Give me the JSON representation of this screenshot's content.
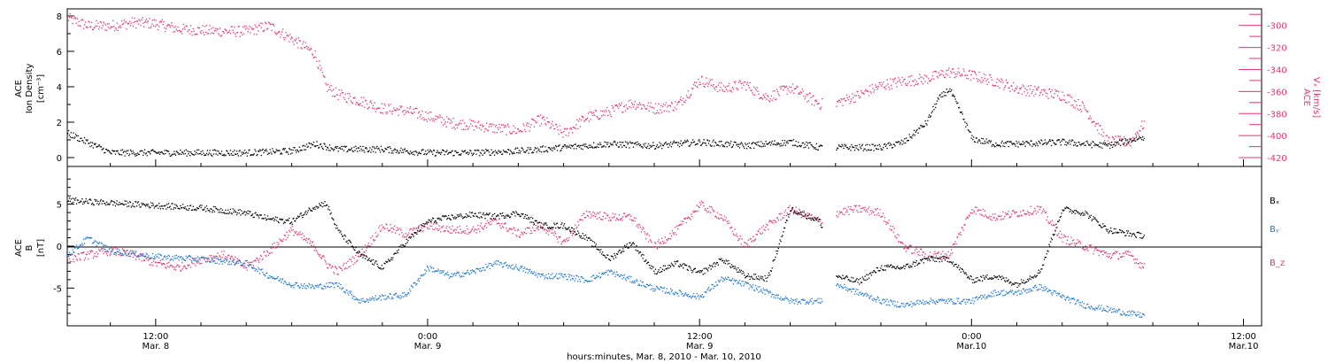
{
  "colors": {
    "black": "#000000",
    "pink": "#e0386a",
    "blue": "#1e78d2"
  },
  "xaxis": {
    "caption": "hours:minutes, Mar. 8, 2010 - Mar. 10, 2010",
    "ticks": [
      {
        "t": 12,
        "time": "12:00",
        "date": "Mar. 8"
      },
      {
        "t": 24,
        "time": "0:00",
        "date": "Mar. 9"
      },
      {
        "t": 36,
        "time": "12:00",
        "date": "Mar. 9"
      },
      {
        "t": 48,
        "time": "0:00",
        "date": "Mar.10"
      },
      {
        "t": 60,
        "time": "12:00",
        "date": "Mar.10"
      }
    ],
    "range_hours": [
      8.1,
      60.8
    ]
  },
  "top_panel": {
    "left_label_line1": "ACE",
    "left_label_line2": "Ion Density",
    "left_unit": "[cm⁻³]",
    "right_label_line1": "ACE",
    "right_label_line2": "Vₓ [km/s]",
    "left_ticks": [
      "0",
      "2",
      "4",
      "6",
      "8"
    ],
    "right_ticks": [
      "-300",
      "-320",
      "-340",
      "-360",
      "-380",
      "-400",
      "-420"
    ]
  },
  "bottom_panel": {
    "left_label_line1": "ACE",
    "left_label_line2": "B",
    "left_unit": "[nT]",
    "legend": [
      "Bₓ",
      "Bᵧ",
      "B_z"
    ],
    "ticks": [
      "5",
      "0",
      "-5"
    ]
  },
  "chart_data": [
    {
      "type": "scatter",
      "panel": "top",
      "xlabel": "hours:minutes, Mar. 8, 2010 - Mar. 10, 2010",
      "ylabel_left": "ACE Ion Density [cm-3]",
      "ylabel_right": "ACE Vx [km/s]",
      "x_range_hours": [
        8.1,
        60.8
      ],
      "ylim_left": [
        -0.5,
        8.4
      ],
      "ylim_right": [
        -428,
        -285
      ],
      "data_gaps_hours": [
        [
          41.4,
          42.0
        ]
      ],
      "series": [
        {
          "name": "Ion Density",
          "color": "#000000",
          "axis": "left",
          "x": [
            8.1,
            10,
            12,
            14,
            16,
            18,
            19,
            20,
            22,
            24,
            26,
            28,
            30,
            32,
            34,
            36,
            38,
            40,
            41.3,
            42.0,
            44,
            45,
            46,
            46.5,
            47,
            47.5,
            48,
            49,
            50,
            52,
            54,
            55.6
          ],
          "y": [
            1.4,
            0.3,
            0.3,
            0.3,
            0.3,
            0.4,
            0.8,
            0.5,
            0.5,
            0.3,
            0.3,
            0.4,
            0.6,
            0.8,
            0.7,
            0.9,
            0.7,
            0.9,
            0.6,
            0.6,
            0.6,
            0.9,
            2.0,
            3.3,
            3.9,
            2.6,
            1.1,
            0.8,
            0.8,
            0.9,
            0.7,
            1.2
          ]
        },
        {
          "name": "Vx",
          "color": "#e0386a",
          "axis": "right",
          "x": [
            8.1,
            9,
            10,
            11,
            12,
            13,
            14,
            15,
            16,
            17,
            18,
            19,
            19.5,
            20,
            21,
            22,
            23,
            24,
            25,
            26,
            27,
            28,
            29,
            30,
            31,
            32,
            33,
            34,
            35,
            36,
            37,
            38,
            38.5,
            39,
            40,
            41.3,
            42.0,
            43,
            44,
            45,
            46,
            47,
            48,
            49,
            50,
            51,
            52,
            53,
            54,
            55,
            55.6
          ],
          "y": [
            -293,
            -300,
            -300,
            -297,
            -298,
            -303,
            -304,
            -305,
            -305,
            -300,
            -312,
            -325,
            -355,
            -362,
            -368,
            -375,
            -377,
            -382,
            -388,
            -390,
            -393,
            -395,
            -385,
            -398,
            -383,
            -378,
            -370,
            -375,
            -372,
            -349,
            -357,
            -353,
            -360,
            -365,
            -356,
            -371,
            -370,
            -363,
            -354,
            -350,
            -348,
            -342,
            -345,
            -350,
            -357,
            -360,
            -363,
            -375,
            -405,
            -405,
            -388
          ]
        }
      ]
    },
    {
      "type": "scatter",
      "panel": "bottom",
      "xlabel": "hours:minutes, Mar. 8, 2010 - Mar. 10, 2010",
      "ylabel": "ACE B [nT]",
      "x_range_hours": [
        8.1,
        60.8
      ],
      "ylim": [
        -9.5,
        9.5
      ],
      "zero_line": true,
      "data_gaps_hours": [
        [
          41.4,
          42.0
        ]
      ],
      "series": [
        {
          "name": "Bx",
          "color": "#000000",
          "x": [
            8.1,
            10,
            12,
            14,
            16,
            17,
            18,
            19,
            19.5,
            20,
            21,
            22,
            23,
            24,
            25,
            26,
            27,
            28,
            29,
            30,
            31,
            32,
            33,
            34,
            35,
            36,
            37,
            38,
            39,
            40,
            41.3,
            42.0,
            43,
            44,
            45,
            46,
            47,
            48,
            49,
            50,
            51,
            52,
            53,
            54,
            55,
            55.6
          ],
          "y": [
            5.5,
            5.2,
            4.9,
            4.6,
            4.0,
            3.3,
            3.0,
            4.8,
            5.2,
            2.0,
            -1.0,
            -2.5,
            0.5,
            3.0,
            3.5,
            3.8,
            3.6,
            4.0,
            2.5,
            2.5,
            1.0,
            -1.5,
            0.5,
            -3.0,
            -2.0,
            -3.2,
            -1.5,
            -3.5,
            -3.8,
            4.5,
            3.0,
            -3.5,
            -4.2,
            -2.5,
            -2.5,
            -1.5,
            -1.5,
            -4.0,
            -3.5,
            -4.5,
            -3.0,
            4.5,
            4.0,
            2.0,
            1.5,
            1.3
          ]
        },
        {
          "name": "By",
          "color": "#1e78d2",
          "x": [
            8.1,
            9,
            10,
            12,
            14,
            16,
            17,
            18,
            19,
            20,
            21,
            22,
            23,
            24,
            25,
            26,
            27,
            28,
            29,
            30,
            31,
            32,
            33,
            34,
            35,
            36,
            37,
            38,
            39,
            40,
            41.3,
            42.0,
            43,
            44,
            45,
            46,
            47,
            48,
            49,
            50,
            51,
            52,
            53,
            54,
            55,
            55.6
          ],
          "y": [
            -1.0,
            1.0,
            -0.5,
            -1.2,
            -1.5,
            -2.0,
            -3.5,
            -4.5,
            -4.8,
            -4.5,
            -6.5,
            -6.0,
            -5.8,
            -2.5,
            -3.5,
            -3.0,
            -2.0,
            -2.5,
            -3.5,
            -3.5,
            -4.0,
            -3.0,
            -4.0,
            -5.0,
            -5.5,
            -6.0,
            -3.8,
            -4.5,
            -5.5,
            -6.5,
            -6.5,
            -4.5,
            -5.5,
            -6.5,
            -7.0,
            -6.5,
            -6.5,
            -6.5,
            -5.5,
            -5.5,
            -4.8,
            -6.0,
            -7.0,
            -7.5,
            -8.0,
            -8.2
          ]
        },
        {
          "name": "Bz",
          "color": "#e0386a",
          "x": [
            8.1,
            9,
            10,
            11,
            12,
            13,
            14,
            15,
            16,
            17,
            18,
            19,
            19.5,
            20,
            21,
            22,
            23,
            24,
            25,
            26,
            27,
            28,
            29,
            30,
            31,
            32,
            33,
            34,
            35,
            36,
            37,
            38,
            38.5,
            39,
            40,
            41.3,
            42.0,
            43,
            44,
            45,
            46,
            47,
            48,
            49,
            50,
            51,
            52,
            53,
            54,
            55,
            55.6
          ],
          "y": [
            -1.5,
            -1.0,
            -0.5,
            -1.0,
            -2.0,
            -2.5,
            -1.5,
            -1.0,
            -2.5,
            -0.5,
            2.0,
            0.0,
            -2.0,
            -3.0,
            -1.0,
            2.5,
            1.5,
            2.5,
            2.0,
            2.0,
            3.0,
            1.5,
            2.5,
            0.5,
            4.0,
            3.5,
            3.5,
            0.0,
            2.0,
            5.0,
            3.5,
            0.0,
            1.5,
            2.5,
            4.5,
            3.0,
            4.0,
            4.5,
            4.0,
            0.0,
            -1.0,
            -1.0,
            4.5,
            3.5,
            4.0,
            4.5,
            1.0,
            0.0,
            -1.0,
            -1.0,
            -2.5
          ]
        }
      ]
    }
  ]
}
